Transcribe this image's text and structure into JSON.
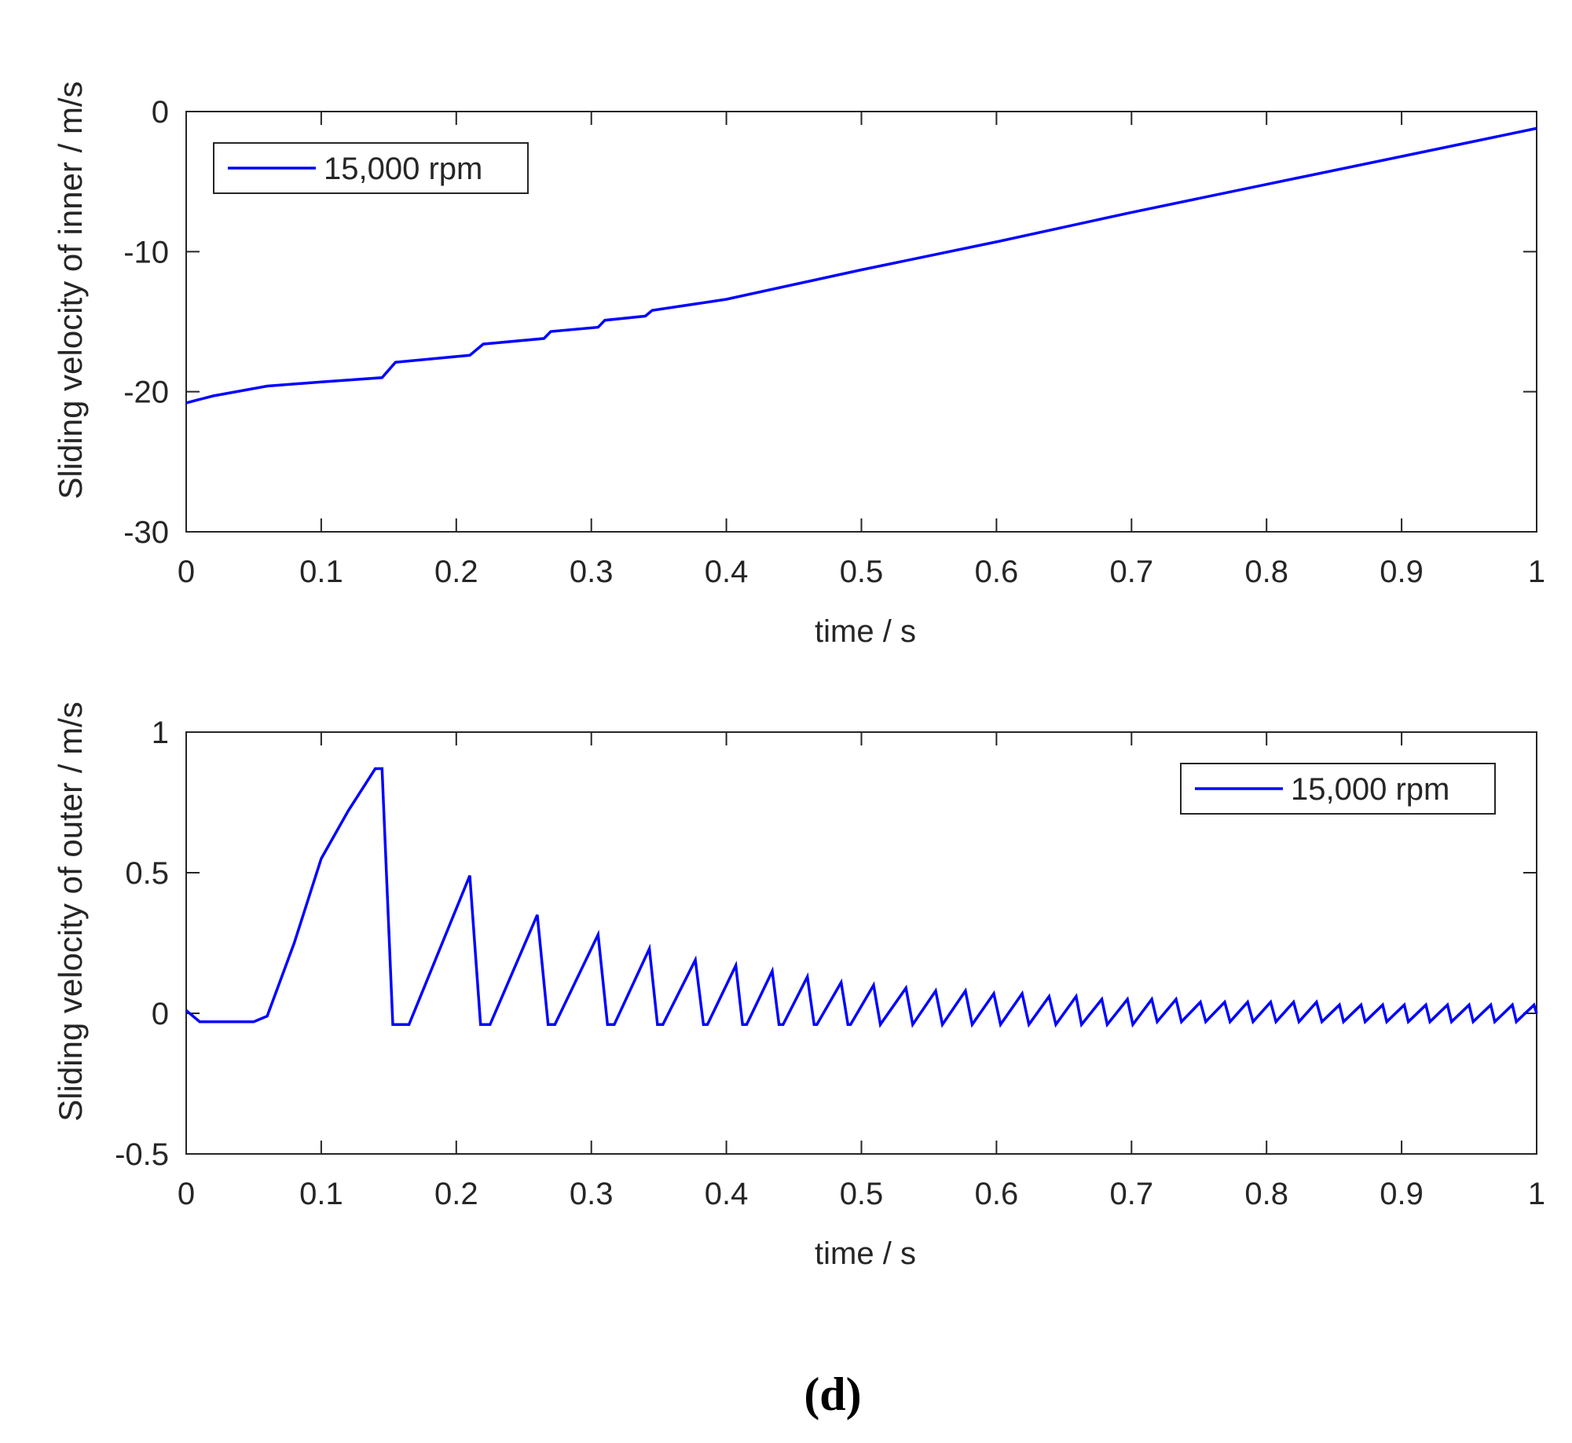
{
  "chart_data": [
    {
      "type": "line",
      "xlabel": "time  /  s",
      "ylabel": "Sliding velocity of inner / m/s",
      "x": [
        0,
        0.02,
        0.06,
        0.1,
        0.145,
        0.155,
        0.21,
        0.22,
        0.265,
        0.27,
        0.305,
        0.31,
        0.34,
        0.345,
        0.4,
        0.5,
        0.6,
        0.7,
        0.8,
        0.9,
        1
      ],
      "series": [
        {
          "name": "15,000 rpm",
          "color": "#0000ff",
          "values": [
            -20.8,
            -20.3,
            -19.6,
            -19.3,
            -19.0,
            -17.9,
            -17.4,
            -16.6,
            -16.2,
            -15.7,
            -15.4,
            -14.9,
            -14.6,
            -14.2,
            -13.4,
            -11.3,
            -9.3,
            -7.2,
            -5.2,
            -3.2,
            -1.2
          ]
        }
      ],
      "xlim": [
        0,
        1
      ],
      "ylim": [
        -30,
        0
      ],
      "xticks": [
        0,
        0.1,
        0.2,
        0.3,
        0.4,
        0.5,
        0.6,
        0.7,
        0.8,
        0.9,
        1
      ],
      "yticks": [
        -30,
        -20,
        -10,
        0
      ],
      "legend": "upper left"
    },
    {
      "type": "line",
      "xlabel": "time  /  s",
      "ylabel": "Sliding velocity of outer / m/s",
      "x": [
        0,
        0.01,
        0.05,
        0.06,
        0.08,
        0.1,
        0.12,
        0.14,
        0.145,
        0.153,
        0.165,
        0.21,
        0.218,
        0.225,
        0.26,
        0.268,
        0.273,
        0.305,
        0.312,
        0.317,
        0.343,
        0.349,
        0.353,
        0.377,
        0.383,
        0.386,
        0.407,
        0.412,
        0.415,
        0.434,
        0.439,
        0.442,
        0.46,
        0.465,
        0.467,
        0.485,
        0.49,
        0.492,
        0.509,
        0.514,
        0.533,
        0.538,
        0.555,
        0.56,
        0.577,
        0.582,
        0.598,
        0.603,
        0.619,
        0.624,
        0.639,
        0.644,
        0.659,
        0.663,
        0.678,
        0.682,
        0.697,
        0.701,
        0.715,
        0.719,
        0.733,
        0.737,
        0.751,
        0.755,
        0.769,
        0.773,
        0.786,
        0.79,
        0.803,
        0.807,
        0.82,
        0.824,
        0.837,
        0.841,
        0.854,
        0.857,
        0.87,
        0.873,
        0.886,
        0.889,
        0.902,
        0.905,
        0.918,
        0.921,
        0.934,
        0.937,
        0.95,
        0.953,
        0.966,
        0.969,
        0.982,
        0.985,
        0.998,
        1
      ],
      "series": [
        {
          "name": "15,000 rpm",
          "color": "#0000ff",
          "values": [
            0.01,
            -0.03,
            -0.03,
            -0.01,
            0.25,
            0.55,
            0.72,
            0.87,
            0.87,
            -0.04,
            -0.04,
            0.49,
            -0.04,
            -0.04,
            0.35,
            -0.04,
            -0.04,
            0.28,
            -0.04,
            -0.04,
            0.23,
            -0.04,
            -0.04,
            0.19,
            -0.04,
            -0.04,
            0.17,
            -0.04,
            -0.04,
            0.15,
            -0.04,
            -0.04,
            0.13,
            -0.04,
            -0.04,
            0.11,
            -0.04,
            -0.04,
            0.1,
            -0.04,
            0.09,
            -0.04,
            0.08,
            -0.04,
            0.08,
            -0.04,
            0.07,
            -0.04,
            0.07,
            -0.04,
            0.06,
            -0.04,
            0.06,
            -0.04,
            0.05,
            -0.04,
            0.05,
            -0.04,
            0.05,
            -0.03,
            0.05,
            -0.03,
            0.04,
            -0.03,
            0.04,
            -0.03,
            0.04,
            -0.03,
            0.04,
            -0.03,
            0.04,
            -0.03,
            0.04,
            -0.03,
            0.03,
            -0.03,
            0.03,
            -0.03,
            0.03,
            -0.03,
            0.03,
            -0.03,
            0.03,
            -0.03,
            0.03,
            -0.03,
            0.03,
            -0.03,
            0.03,
            -0.03,
            0.03,
            -0.03,
            0.03,
            0
          ]
        }
      ],
      "xlim": [
        0,
        1
      ],
      "ylim": [
        -0.5,
        1
      ],
      "xticks": [
        0,
        0.1,
        0.2,
        0.3,
        0.4,
        0.5,
        0.6,
        0.7,
        0.8,
        0.9,
        1
      ],
      "yticks": [
        -0.5,
        0,
        0.5,
        1
      ],
      "legend": "upper right"
    }
  ],
  "caption": "(d)"
}
